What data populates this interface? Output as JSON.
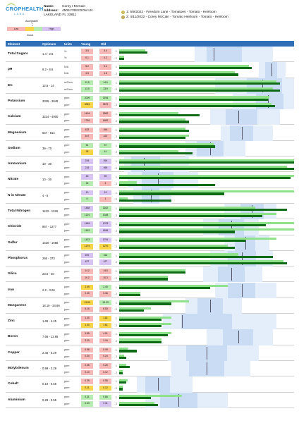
{
  "header": {
    "logo": {
      "word1": "CROP",
      "word2": "HEALTH",
      "word3": "LABS"
    },
    "name_label": "Name:",
    "name_value": "Corey I McCain",
    "address_label": "Address:",
    "address_value": "4505 FREEDOM LN",
    "city_line": "LAKELAND FL 33811",
    "samples": [
      {
        "marker": "1",
        "color": "#c8b44a",
        "text": "1: 5/9/2022 - Freedom Lane - Tomatoes - Tomato - Heirloom"
      },
      {
        "marker": "2",
        "color": "#b8a040",
        "text": "2: 4/11/2022 - Corey McCain - Tomato Heirloom - Tomato - Heirloom"
      }
    ]
  },
  "legend": {
    "top": "Acceptable",
    "numbers": [
      "1",
      "2",
      "3"
    ],
    "segments": [
      {
        "label": "Low",
        "color": "#f7b9b7"
      },
      {
        "label": "",
        "color": "#f7d54a"
      },
      {
        "label": "",
        "color": "#b7ecb0"
      },
      {
        "label": "High",
        "color": "#d8c4f2"
      }
    ],
    "bottom": "Good"
  },
  "columns": {
    "element": "Element",
    "optimum": "Optimum",
    "units": "Units",
    "young": "Young",
    "old": "Old"
  },
  "colors": {
    "header_blue": "#2e6fb7",
    "bar_light": "#8fe28a",
    "bar_dark": "#0c6b14",
    "band_light": "#e4eefa",
    "band_mid": "#c9dcf4"
  },
  "rows": [
    {
      "name": "Total Sugars",
      "optimum": "1.4 - 2.5",
      "lines": [
        {
          "unit": "%",
          "young": "3.5",
          "young_c": "c-red",
          "old": "3.4",
          "old_c": "c-red",
          "idx": "1"
        },
        {
          "unit": "%",
          "young": "0.1",
          "young_c": "c-red",
          "old": "0.2",
          "old_c": "c-red",
          "idx": "2"
        }
      ],
      "band": [
        0.43,
        0.88
      ],
      "mid": 0.6,
      "ref": 0.54,
      "bars": [
        [
          0.16,
          0.15
        ],
        [
          0.03,
          0.03
        ]
      ]
    },
    {
      "name": "pH",
      "optimum": "6.2 - 6.6",
      "lines": [
        {
          "unit": "N/A",
          "young": "5.2",
          "young_c": "c-red",
          "old": "5.4",
          "old_c": "c-red",
          "idx": "1"
        },
        {
          "unit": "N/A",
          "young": "4.5",
          "young_c": "c-red",
          "old": "4.8",
          "old_c": "c-red",
          "idx": "2"
        }
      ],
      "band": [
        0.8,
        0.95
      ],
      "mid": 0.87,
      "ref": 0.87,
      "bars": [
        [
          0.76,
          0.74
        ],
        [
          0.68,
          0.66
        ]
      ]
    },
    {
      "name": "EC",
      "optimum": "12.5 - 14",
      "lines": [
        {
          "unit": "mS/cm",
          "young": "12.5",
          "young_c": "c-green",
          "old": "14.5",
          "old_c": "c-green",
          "idx": "1"
        },
        {
          "unit": "mS/cm",
          "young": "13.0",
          "young_c": "c-green",
          "old": "13.9",
          "old_c": "c-green",
          "idx": "2"
        }
      ],
      "band": [
        0.55,
        1.0
      ],
      "mid": 0.83,
      "ref": 0.82,
      "bars": [
        [
          0.92,
          0.9
        ],
        [
          0.92,
          0.88
        ]
      ]
    },
    {
      "name": "Potassium",
      "optimum": "3336 - 3848",
      "lines": [
        {
          "unit": "ppm",
          "young": "2009",
          "young_c": "c-green",
          "old": "3706",
          "old_c": "c-green",
          "idx": "1"
        },
        {
          "unit": "ppm",
          "young": "3353",
          "young_c": "c-yellow",
          "old": "3879",
          "old_c": "c-red",
          "idx": "2"
        }
      ],
      "band": [
        0.65,
        1.0
      ],
      "mid": 0.86,
      "ref": 0.85,
      "bars": [
        [
          0.85,
          0.86
        ],
        [
          0.89,
          0.87
        ]
      ]
    },
    {
      "name": "Calcium",
      "optimum": "3224 - 4900",
      "lines": [
        {
          "unit": "ppm",
          "young": "1404",
          "young_c": "c-red",
          "old": "2582",
          "old_c": "c-red",
          "idx": "1"
        },
        {
          "unit": "ppm",
          "young": "1769",
          "young_c": "c-red",
          "old": "1682",
          "old_c": "c-red",
          "idx": "2"
        }
      ],
      "band": [
        0.52,
        0.92
      ],
      "mid": 0.7,
      "ref": 0.68,
      "bars": [
        [
          0.46,
          0.34
        ],
        [
          0.4,
          0.38
        ]
      ]
    },
    {
      "name": "Magnesium",
      "optimum": "647 - 914",
      "lines": [
        {
          "unit": "ppm",
          "young": "432",
          "young_c": "c-red",
          "old": "454",
          "old_c": "c-red",
          "idx": "1"
        },
        {
          "unit": "ppm",
          "young": "447",
          "young_c": "c-red",
          "old": "422",
          "old_c": "c-red",
          "idx": "2"
        }
      ],
      "band": [
        0.58,
        0.88
      ],
      "mid": 0.7,
      "ref": 0.7,
      "bars": [
        [
          0.4,
          0.38
        ],
        [
          0.38,
          0.4
        ]
      ]
    },
    {
      "name": "Sodium",
      "optimum": "39 - 70",
      "lines": [
        {
          "unit": "ppm",
          "young": "51",
          "young_c": "c-green",
          "old": "57",
          "old_c": "c-green",
          "idx": "1"
        },
        {
          "unit": "ppm",
          "young": "35",
          "young_c": "c-yellow",
          "old": "41",
          "old_c": "c-green",
          "idx": "2"
        }
      ],
      "band": [
        0.38,
        0.72
      ],
      "mid": 0.52,
      "ref": 0.52,
      "bars": [
        [
          0.55,
          0.54
        ],
        [
          0.42,
          0.34
        ]
      ]
    },
    {
      "name": "Ammonium",
      "optimum": "10 - 30",
      "lines": [
        {
          "unit": "ppm",
          "young": "234",
          "young_c": "c-purple",
          "old": "264",
          "old_c": "c-purple",
          "idx": "1"
        },
        {
          "unit": "ppm",
          "young": "215",
          "young_c": "c-purple",
          "old": "269",
          "old_c": "c-purple",
          "idx": "2"
        }
      ],
      "band": [
        0.03,
        0.4
      ],
      "mid": 0.15,
      "ref": 0.14,
      "bars": [
        [
          1.0,
          1.0
        ],
        [
          1.0,
          0.96
        ]
      ]
    },
    {
      "name": "Nitrate",
      "optimum": "10 - 30",
      "lines": [
        {
          "unit": "ppm",
          "young": "43",
          "young_c": "c-purple",
          "old": "55",
          "old_c": "c-purple",
          "idx": "1"
        },
        {
          "unit": "ppm",
          "young": "26",
          "young_c": "c-green",
          "old": "4",
          "old_c": "c-red",
          "idx": "2"
        }
      ],
      "band": [
        0.05,
        0.45
      ],
      "mid": 0.22,
      "ref": 0.22,
      "bars": [
        [
          0.98,
          1.0
        ],
        [
          0.55,
          0.1
        ]
      ]
    },
    {
      "name": "N in Nitrate",
      "optimum": "4 - 6",
      "lines": [
        {
          "unit": "ppm",
          "young": "10",
          "young_c": "c-purple",
          "old": "19",
          "old_c": "c-purple",
          "idx": "1"
        },
        {
          "unit": "ppm",
          "young": "6",
          "young_c": "c-green",
          "old": "1",
          "old_c": "c-red",
          "idx": "2"
        }
      ],
      "band": [
        0.08,
        0.3
      ],
      "mid": 0.18,
      "ref": 0.18,
      "bars": [
        [
          0.6,
          1.0
        ],
        [
          0.3,
          0.05
        ]
      ]
    },
    {
      "name": "Total Nitrogen",
      "optimum": "1133 - 1328",
      "lines": [
        {
          "unit": "ppm",
          "young": "1468",
          "young_c": "c-purple",
          "old": "1162",
          "old_c": "c-green",
          "idx": "1"
        },
        {
          "unit": "ppm",
          "young": "1201",
          "young_c": "c-green",
          "old": "1348",
          "old_c": "c-green",
          "idx": "2"
        }
      ],
      "band": [
        0.6,
        0.9
      ],
      "mid": 0.76,
      "ref": 0.76,
      "bars": [
        [
          0.96,
          0.78
        ],
        [
          0.82,
          0.9
        ]
      ]
    },
    {
      "name": "Chloride",
      "optimum": "867 - 1277",
      "lines": [
        {
          "unit": "ppm",
          "young": "1464",
          "young_c": "c-purple",
          "old": "1703",
          "old_c": "c-purple",
          "idx": "1"
        },
        {
          "unit": "ppm",
          "young": "1163",
          "young_c": "c-green",
          "old": "1836",
          "old_c": "c-purple",
          "idx": "2"
        }
      ],
      "band": [
        0.48,
        0.8
      ],
      "mid": 0.64,
      "ref": 0.64,
      "bars": [
        [
          0.84,
          1.0
        ],
        [
          0.66,
          1.0
        ]
      ]
    },
    {
      "name": "Sulfur",
      "optimum": "1420 - 1686",
      "lines": [
        {
          "unit": "ppm",
          "young": "1423",
          "young_c": "c-green",
          "old": "1791",
          "old_c": "c-purple",
          "idx": "1"
        },
        {
          "unit": "ppm",
          "young": "1274",
          "young_c": "c-yellow",
          "old": "1270",
          "old_c": "c-yellow",
          "idx": "2"
        }
      ],
      "band": [
        0.6,
        0.86
      ],
      "mid": 0.72,
      "ref": 0.72,
      "bars": [
        [
          0.72,
          0.9
        ],
        [
          0.66,
          0.62
        ]
      ]
    },
    {
      "name": "Phosphorus",
      "optimum": "266 - 373",
      "lines": [
        {
          "unit": "ppm",
          "young": "400",
          "young_c": "c-purple",
          "old": "316",
          "old_c": "c-green",
          "idx": "1"
        },
        {
          "unit": "ppm",
          "young": "437",
          "young_c": "c-purple",
          "old": "427",
          "old_c": "c-purple",
          "idx": "2"
        }
      ],
      "band": [
        0.52,
        0.88
      ],
      "mid": 0.7,
      "ref": 0.7,
      "bars": [
        [
          0.88,
          0.68
        ],
        [
          0.96,
          0.94
        ]
      ]
    },
    {
      "name": "Silica",
      "optimum": "23.6 - 40",
      "lines": [
        {
          "unit": "ppm",
          "young": "14.2",
          "young_c": "c-red",
          "old": "14.5",
          "old_c": "c-red",
          "idx": "1"
        },
        {
          "unit": "ppm",
          "young": "10.2",
          "young_c": "c-red",
          "old": "10.3",
          "old_c": "c-red",
          "idx": "2"
        }
      ],
      "band": [
        0.48,
        0.82
      ],
      "mid": 0.64,
      "ref": 0.64,
      "bars": [
        [
          0.38,
          0.38
        ],
        [
          0.28,
          0.28
        ]
      ]
    },
    {
      "name": "Iron",
      "optimum": "2.2 - 3.06",
      "lines": [
        {
          "unit": "ppm",
          "young": "2.05",
          "young_c": "c-yellow",
          "old": "2.49",
          "old_c": "c-green",
          "idx": "1"
        },
        {
          "unit": "ppm",
          "young": "0.45",
          "young_c": "c-red",
          "old": "0.46",
          "old_c": "c-red",
          "idx": "2"
        }
      ],
      "band": [
        0.55,
        0.9
      ],
      "mid": 0.7,
      "ref": 0.7,
      "bars": [
        [
          0.52,
          0.62
        ],
        [
          0.12,
          0.12
        ]
      ]
    },
    {
      "name": "Manganese",
      "optimum": "18.19 - 34.96",
      "lines": [
        {
          "unit": "ppm",
          "young": "13.80",
          "young_c": "c-yellow",
          "old": "19.03",
          "old_c": "c-green",
          "idx": "1"
        },
        {
          "unit": "ppm",
          "young": "6.16",
          "young_c": "c-red",
          "old": "8.53",
          "old_c": "c-red",
          "idx": "2"
        }
      ],
      "band": [
        0.38,
        0.7
      ],
      "mid": 0.52,
      "ref": 0.52,
      "bars": [
        [
          0.3,
          0.4
        ],
        [
          0.14,
          0.18
        ]
      ]
    },
    {
      "name": "Zinc",
      "optimum": "1.69 - 4.25",
      "lines": [
        {
          "unit": "ppm",
          "young": "1.30",
          "young_c": "c-red",
          "old": "1.61",
          "old_c": "c-yellow",
          "idx": "1"
        },
        {
          "unit": "ppm",
          "young": "1.30",
          "young_c": "c-yellow",
          "old": "1.61",
          "old_c": "c-yellow",
          "idx": "2"
        }
      ],
      "band": [
        0.25,
        0.9
      ],
      "mid": 0.5,
      "ref": 0.36,
      "bars": [
        [
          0.24,
          0.3
        ],
        [
          0.24,
          0.3
        ]
      ]
    },
    {
      "name": "Boron",
      "optimum": "7.66 - 12.95",
      "lines": [
        {
          "unit": "ppm",
          "young": "3.85",
          "young_c": "c-red",
          "old": "4.01",
          "old_c": "c-red",
          "idx": "1"
        },
        {
          "unit": "ppm",
          "young": "3.20",
          "young_c": "c-red",
          "old": "3.16",
          "old_c": "c-red",
          "idx": "2"
        }
      ],
      "band": [
        0.5,
        0.88
      ],
      "mid": 0.68,
      "ref": 0.68,
      "bars": [
        [
          0.28,
          0.3
        ],
        [
          0.24,
          0.24
        ]
      ]
    },
    {
      "name": "Copper",
      "optimum": "2.46 - 6.29",
      "lines": [
        {
          "unit": "ppm",
          "young": "0.98",
          "young_c": "c-red",
          "old": "0.49",
          "old_c": "c-red",
          "idx": "1"
        },
        {
          "unit": "ppm",
          "young": "0.30",
          "young_c": "c-red",
          "old": "0.24",
          "old_c": "c-red",
          "idx": "2"
        }
      ],
      "band": [
        0.28,
        0.8
      ],
      "mid": 0.5,
      "ref": 0.5,
      "bars": [
        [
          0.1,
          0.05
        ],
        [
          0.04,
          0.03
        ]
      ]
    },
    {
      "name": "Molybdenum",
      "optimum": "0.99 - 2.29",
      "lines": [
        {
          "unit": "ppm",
          "young": "0.36",
          "young_c": "c-red",
          "old": "0.26",
          "old_c": "c-red",
          "idx": "1"
        },
        {
          "unit": "ppm",
          "young": "0.10",
          "young_c": "c-red",
          "old": "0.12",
          "old_c": "c-red",
          "idx": "2"
        }
      ],
      "band": [
        0.3,
        0.75
      ],
      "mid": 0.5,
      "ref": 0.5,
      "bars": [
        [
          0.06,
          0.04
        ],
        [
          0.02,
          0.02
        ]
      ]
    },
    {
      "name": "Cobalt",
      "optimum": "0.19 - 0.56",
      "lines": [
        {
          "unit": "ppm",
          "young": "0.35",
          "young_c": "c-red",
          "old": "0.55",
          "old_c": "c-red",
          "idx": "1"
        },
        {
          "unit": "ppm",
          "young": "0.11",
          "young_c": "c-yellow",
          "old": "0.12",
          "old_c": "c-yellow",
          "idx": "2"
        }
      ],
      "band": [
        0.1,
        0.42
      ],
      "mid": 0.22,
      "ref": 0.22,
      "bars": [
        [
          0.04,
          0.05
        ],
        [
          0.02,
          0.02
        ]
      ]
    },
    {
      "name": "Aluminium",
      "optimum": "0.28 - 0.55",
      "lines": [
        {
          "unit": "ppm",
          "young": "0.31",
          "young_c": "c-green",
          "old": "0.66",
          "old_c": "c-green",
          "idx": "1"
        },
        {
          "unit": "ppm",
          "young": "0.33",
          "young_c": "c-green",
          "old": "0.31",
          "old_c": "c-purple",
          "idx": "2"
        }
      ],
      "band": [
        0.15,
        0.62
      ],
      "mid": 0.34,
      "ref": 0.34,
      "bars": [
        [
          0.18,
          0.36
        ],
        [
          0.22,
          0.2
        ]
      ]
    }
  ]
}
